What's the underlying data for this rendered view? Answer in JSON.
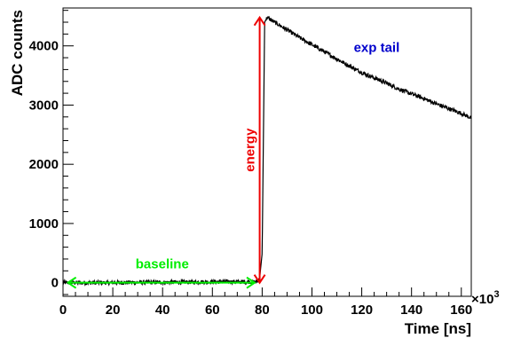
{
  "chart_data": {
    "type": "line",
    "xlabel": "Time [ns]",
    "ylabel": "ADC counts",
    "x_exponent_label": "×10",
    "x_exponent_power": "3",
    "xlim": [
      0,
      164
    ],
    "ylim": [
      -230,
      4640
    ],
    "x_ticks": [
      0,
      20,
      40,
      60,
      80,
      100,
      120,
      140,
      160
    ],
    "x_tick_labels": [
      "0",
      "20",
      "40",
      "60",
      "80",
      "100",
      "120",
      "140",
      "160"
    ],
    "y_ticks": [
      0,
      1000,
      2000,
      3000,
      4000
    ],
    "y_tick_labels": [
      "0",
      "1000",
      "2000",
      "3000",
      "4000"
    ],
    "series": [
      {
        "color": "#000000",
        "x": [
          0,
          10,
          20,
          30,
          40,
          50,
          60,
          70,
          78,
          79,
          80,
          81,
          82,
          85,
          90,
          95,
          100,
          105,
          110,
          115,
          120,
          125,
          130,
          135,
          140,
          145,
          150,
          155,
          160,
          164
        ],
        "y": [
          0,
          0,
          0,
          5,
          5,
          10,
          15,
          15,
          15,
          80,
          500,
          4400,
          4480,
          4400,
          4270,
          4140,
          4020,
          3900,
          3780,
          3660,
          3550,
          3460,
          3370,
          3270,
          3190,
          3110,
          3020,
          2940,
          2860,
          2780
        ]
      }
    ],
    "annotations": [
      {
        "text": "baseline",
        "color": "#00ee00",
        "type": "double-arrow",
        "from_x": 2,
        "to_x": 77,
        "y": 0
      },
      {
        "text": "energy",
        "color": "#ee0000",
        "type": "double-arrow",
        "x": 79,
        "from_y": 0,
        "to_y": 4480
      },
      {
        "text": "exp tail",
        "color": "#0000cc",
        "type": "label",
        "x": 126,
        "y": 3900
      }
    ]
  }
}
